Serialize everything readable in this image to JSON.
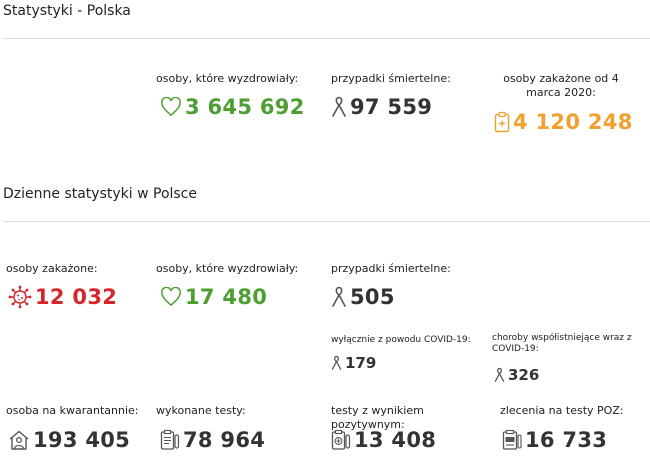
{
  "poland": {
    "title": "Statystyki - Polska",
    "recovered": {
      "label": "osoby, które wyzdrowiały:",
      "value": "3 645 692",
      "icon": "heart-icon"
    },
    "deaths": {
      "label": "przypadki śmiertelne:",
      "value": "97 559",
      "icon": "ribbon-icon"
    },
    "infected": {
      "label": "osoby zakażone od 4 marca 2020:",
      "value": "4 120 248",
      "icon": "clipboard-icon"
    }
  },
  "daily": {
    "title": "Dzienne statystyki w Polsce",
    "infected": {
      "label": "osoby zakażone:",
      "value": "12 032",
      "icon": "virus-icon"
    },
    "recovered": {
      "label": "osoby, które wyzdrowiały:",
      "value": "17 480",
      "icon": "heart-icon"
    },
    "deaths": {
      "label": "przypadki śmiertelne:",
      "value": "505",
      "icon": "ribbon-icon"
    },
    "covid_only": {
      "label": "wyłącznie z powodu COVID-19:",
      "value": "179",
      "icon": "ribbon-icon"
    },
    "comorbid": {
      "label": "choroby współistniejące wraz z COVID-19:",
      "value": "326",
      "icon": "ribbon-icon"
    },
    "quarantine": {
      "label": "osoba na kwarantannie:",
      "value": "193 405",
      "icon": "house-person-icon"
    },
    "tests": {
      "label": "wykonane testy:",
      "value": "78 964",
      "icon": "test-list-icon"
    },
    "positive_tests": {
      "label": "testy z wynikiem pozytywnym:",
      "value": "13 408",
      "icon": "positive-test-icon"
    },
    "poz_orders": {
      "label": "zlecenia na testy POZ:",
      "value": "16 733",
      "icon": "poz-document-icon"
    }
  },
  "colors": {
    "recovered": "#4e9f31",
    "infected_daily": "#d6262c",
    "infected_total": "#f2a030",
    "neutral": "#333333"
  }
}
